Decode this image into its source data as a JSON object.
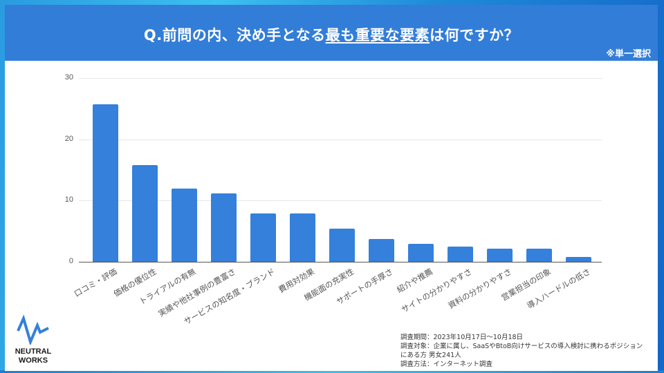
{
  "header": {
    "title_prefix": "Q.前問の内、決め手となる",
    "title_underlined": "最も重要な要素",
    "title_suffix": "は何ですか？",
    "note": "※単一選択",
    "background_color": "#327dd8"
  },
  "chart_data": {
    "type": "bar",
    "title": "Q.前問の内、決め手となる最も重要な要素は何ですか？",
    "subtitle": "※単一選択",
    "xlabel": "",
    "ylabel": "",
    "ylim": [
      0,
      30
    ],
    "yticks": [
      0,
      10,
      20,
      30
    ],
    "grid": true,
    "legend": "none",
    "bar_color": "#3480db",
    "categories": [
      "口コミ・評価",
      "価格の優位性",
      "トライアルの有無",
      "実績や他社事例の豊富さ",
      "サービスの知名度・ブランド",
      "費用対効果",
      "機能面の充実性",
      "サポートの手厚さ",
      "紹介や推薦",
      "サイトの分かりやすさ",
      "資料の分かりやすさ",
      "営業担当の印象",
      "導入ハードルの低さ"
    ],
    "values": [
      25.7,
      15.8,
      12.0,
      11.2,
      7.9,
      7.9,
      5.4,
      3.7,
      2.9,
      2.5,
      2.1,
      2.1,
      0.8
    ]
  },
  "logo": {
    "line1": "NEUTRAL",
    "line2": "WORKS",
    "icon": "pulse-wave-icon"
  },
  "survey": {
    "period": "調査期間：2023年10月17日～10月18日",
    "target_line1": "調査対象：企業に属し、SaaSやBtoB向けサービスの導入検討に携わるポジション",
    "target_line2": "にある方 男女241人",
    "method": "調査方法：インターネット調査"
  }
}
